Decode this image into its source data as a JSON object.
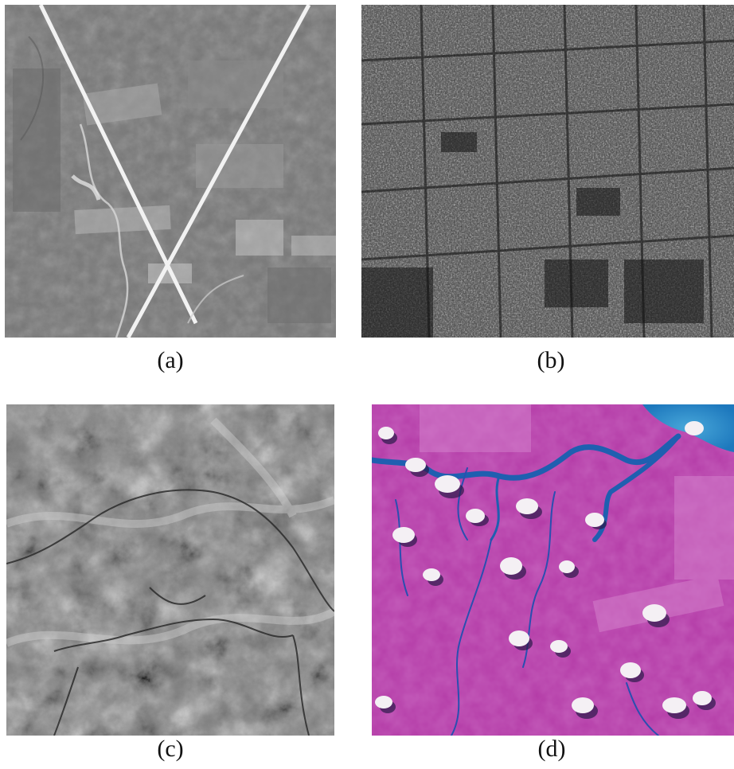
{
  "figure": {
    "panels": [
      {
        "id": "a",
        "caption": "(a)",
        "content": "grayscale-aerial-image"
      },
      {
        "id": "b",
        "caption": "(b)",
        "content": "grayscale-radar-image"
      },
      {
        "id": "c",
        "caption": "(c)",
        "content": "grayscale-satellite-image"
      },
      {
        "id": "d",
        "caption": "(d)",
        "content": "false-color-satellite-image"
      }
    ]
  },
  "colors": {
    "background": "#ffffff",
    "caption_text": "#111111",
    "panel_d_land": "#b33aa6",
    "panel_d_river": "#1f5fb0",
    "panel_d_cloud": "#f4f0f4"
  }
}
